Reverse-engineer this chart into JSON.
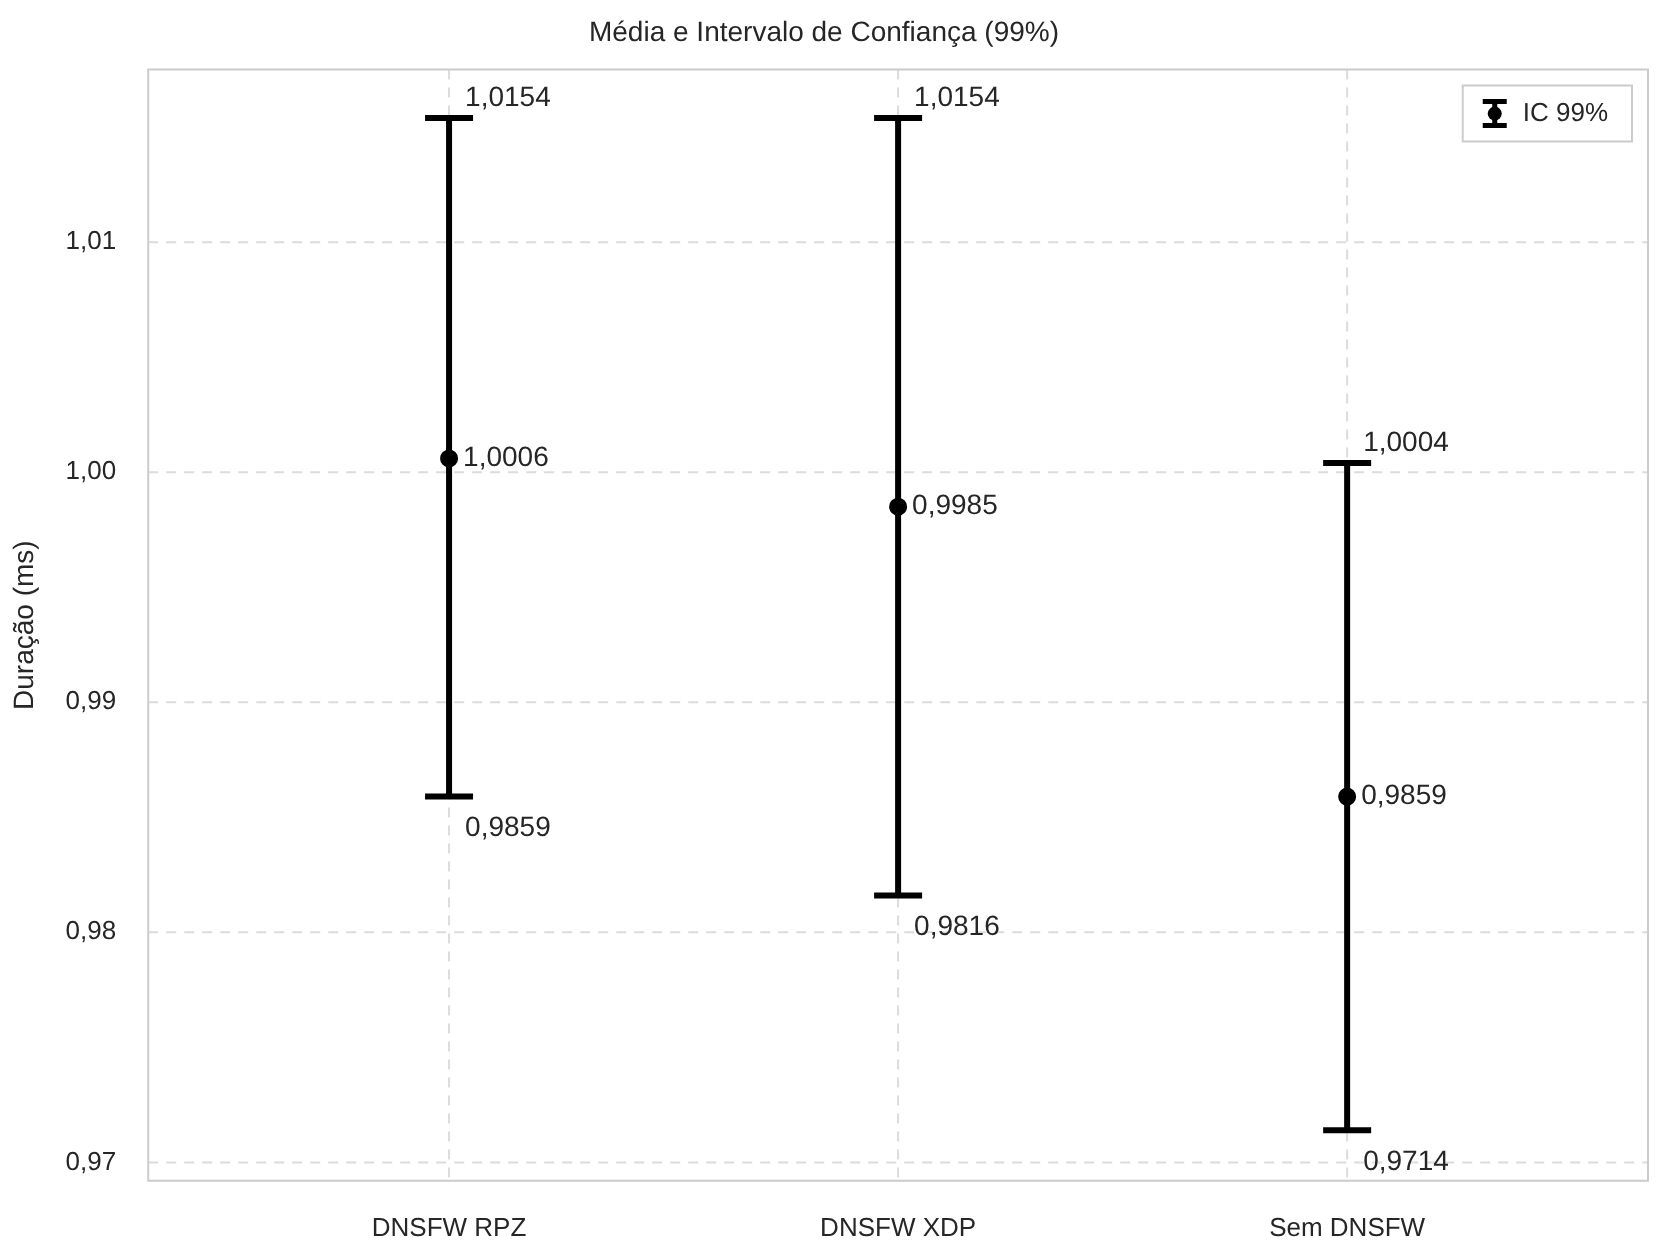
{
  "chart_data": {
    "type": "scatter",
    "title": "Média e Intervalo de Confiança (99%)",
    "ylabel": "Duração (ms)",
    "categories": [
      "DNSFW RPZ",
      "DNSFW XDP",
      "Sem DNSFW"
    ],
    "series": [
      {
        "name": "IC 99%",
        "color": "#000000",
        "x": [
          "DNSFW RPZ",
          "DNSFW XDP",
          "Sem DNSFW"
        ],
        "values": [
          1.0006,
          0.9985,
          0.9859
        ],
        "errors": [
          [
            0.9859,
            1.0154
          ],
          [
            0.9816,
            1.0154
          ],
          [
            0.9714,
            1.0004
          ]
        ],
        "value_labels": [
          "1,0006",
          "0,9985",
          "0,9859"
        ]
      }
    ],
    "annotations": [
      {
        "text": "1,0154",
        "x": "DNSFW RPZ",
        "y": 1.0154
      },
      {
        "text": "0,9859",
        "x": "DNSFW RPZ",
        "y": 0.9859
      },
      {
        "text": "1,0154",
        "x": "DNSFW XDP",
        "y": 1.0154
      },
      {
        "text": "0,9816",
        "x": "DNSFW XDP",
        "y": 0.9816
      },
      {
        "text": "1,0004",
        "x": "Sem DNSFW",
        "y": 1.0004
      },
      {
        "text": "0,9714",
        "x": "Sem DNSFW",
        "y": 0.9714
      }
    ],
    "ylim": [
      0.9692,
      1.0175
    ],
    "yticks": [
      {
        "value": 0.97,
        "label": "0,97"
      },
      {
        "value": 0.98,
        "label": "0,98"
      },
      {
        "value": 0.99,
        "label": "0,99"
      },
      {
        "value": 1.0,
        "label": "1,00"
      },
      {
        "value": 1.01,
        "label": "1,01"
      }
    ],
    "grid": true,
    "legend": "top right",
    "marker": "circle"
  }
}
